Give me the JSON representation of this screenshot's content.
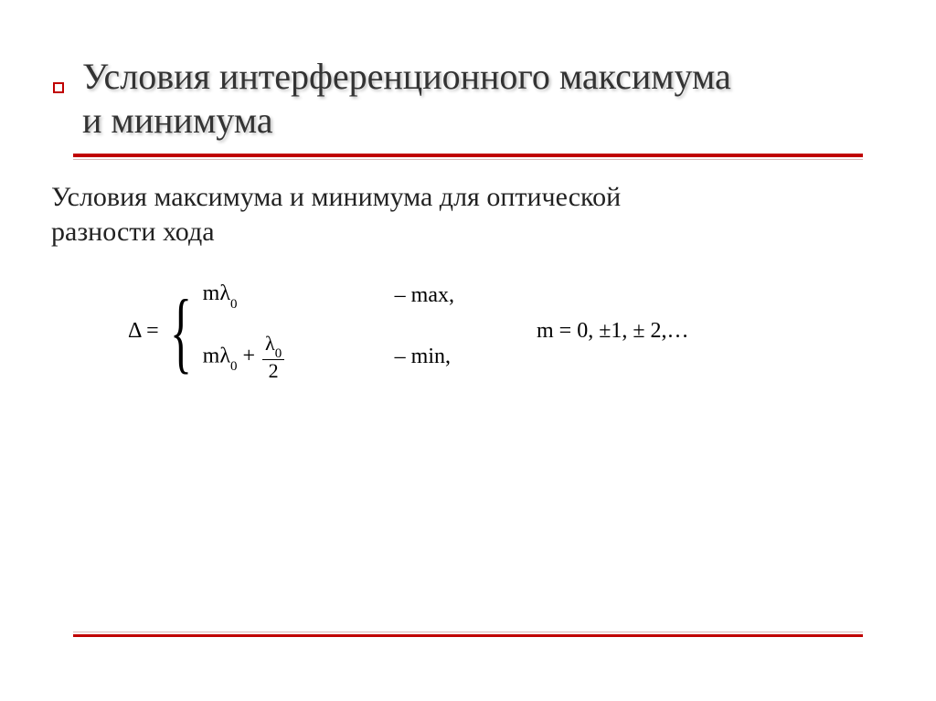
{
  "colors": {
    "accent": "#c00000",
    "text_title": "#333333",
    "text_body": "#222222",
    "text_formula": "#000000",
    "background": "#ffffff",
    "thin_line": "#d8b8b8"
  },
  "typography": {
    "title_fontsize": 40,
    "subtitle_fontsize": 30,
    "formula_fontsize": 24,
    "font_family": "Times New Roman"
  },
  "title": {
    "line1": "Условия интерференционного максимума",
    "line2": "и минимума"
  },
  "subtitle": {
    "line1": "Условия максимума и минимума для оптической",
    "line2": "разности хода"
  },
  "formula": {
    "delta_label": "Δ =",
    "case_max_expr": "mλ",
    "case_max_sub": "0",
    "case_max_label": "– max,",
    "case_min_prefix": "mλ",
    "case_min_prefix_sub": "0",
    "case_min_plus": " + ",
    "frac_num": "λ",
    "frac_num_sub": "0",
    "frac_den": "2",
    "case_min_label": "– min,",
    "m_values": "m = 0, ±1, ± 2,…"
  }
}
